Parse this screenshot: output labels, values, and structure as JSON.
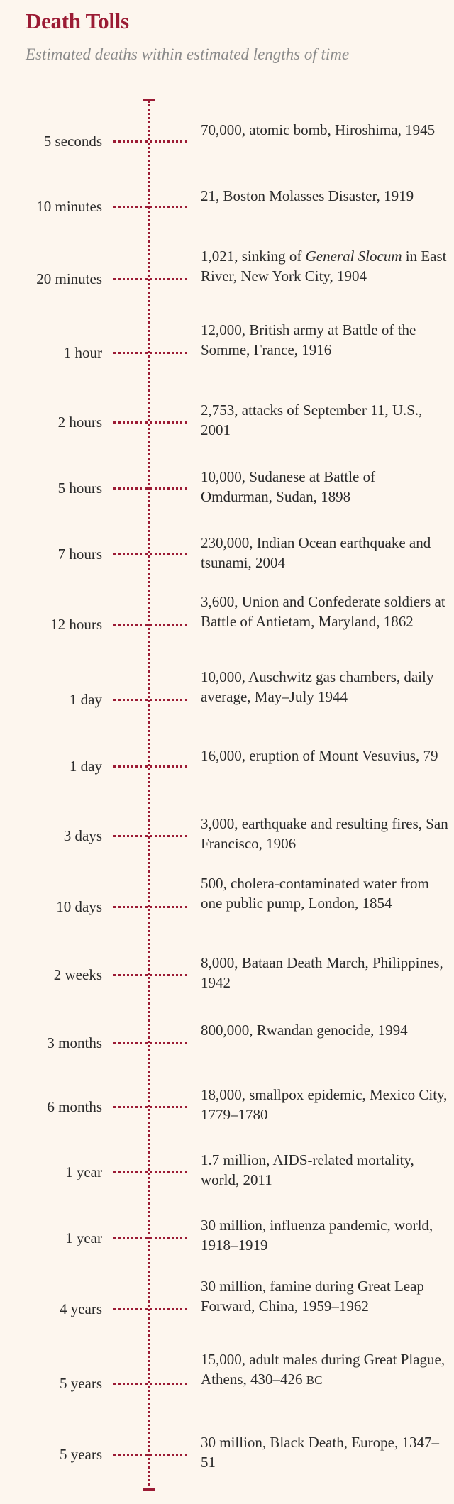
{
  "header": {
    "title": "Death Tolls",
    "subtitle": "Estimated deaths within estimated lengths of time"
  },
  "accent_color": "#9b1b34",
  "entries": [
    {
      "duration": "5 seconds",
      "event": "70,000, atomic bomb, Hiroshima, 1945"
    },
    {
      "duration": "10 minutes",
      "event": "21, Boston Molasses Disaster, 1919"
    },
    {
      "duration": "20 minutes",
      "event": "1,021, sinking of General Slocum in East River, New York City, 1904"
    },
    {
      "duration": "1 hour",
      "event": "12,000, British army at Battle of the Somme, France, 1916"
    },
    {
      "duration": "2 hours",
      "event": "2,753, attacks of September 11, U.S., 2001"
    },
    {
      "duration": "5 hours",
      "event": "10,000, Sudanese at Battle of Omdurman, Sudan, 1898"
    },
    {
      "duration": "7 hours",
      "event": "230,000, Indian Ocean earthquake and tsunami, 2004"
    },
    {
      "duration": "12 hours",
      "event": "3,600, Union and Confederate soldiers at Battle of Antietam, Maryland, 1862"
    },
    {
      "duration": "1 day",
      "event": "10,000, Auschwitz gas chambers, daily average, May–July 1944"
    },
    {
      "duration": "1 day",
      "event": "16,000, eruption of Mount Vesuvius, 79"
    },
    {
      "duration": "3 days",
      "event": "3,000, earthquake and resulting fires, San Francisco, 1906"
    },
    {
      "duration": "10 days",
      "event": "500, cholera-contaminated water from one public pump, London, 1854"
    },
    {
      "duration": "2 weeks",
      "event": "8,000, Bataan Death March, Philippines, 1942"
    },
    {
      "duration": "3 months",
      "event": "800,000, Rwandan genocide, 1994"
    },
    {
      "duration": "6 months",
      "event": "18,000, smallpox epidemic, Mexico City, 1779–1780"
    },
    {
      "duration": "1 year",
      "event": "1.7 million, AIDS-related mortality, world, 2011"
    },
    {
      "duration": "1 year",
      "event": "30 million, influenza pandemic, world, 1918–1919"
    },
    {
      "duration": "4 years",
      "event": "30 million, famine during Great Leap Forward, China, 1959–1962"
    },
    {
      "duration": "5 years",
      "event": "15,000, adult males during Great Plague, Athens, 430–426 BC"
    },
    {
      "duration": "5 years",
      "event": "30 million, Black Death, Europe, 1347–51"
    }
  ]
}
